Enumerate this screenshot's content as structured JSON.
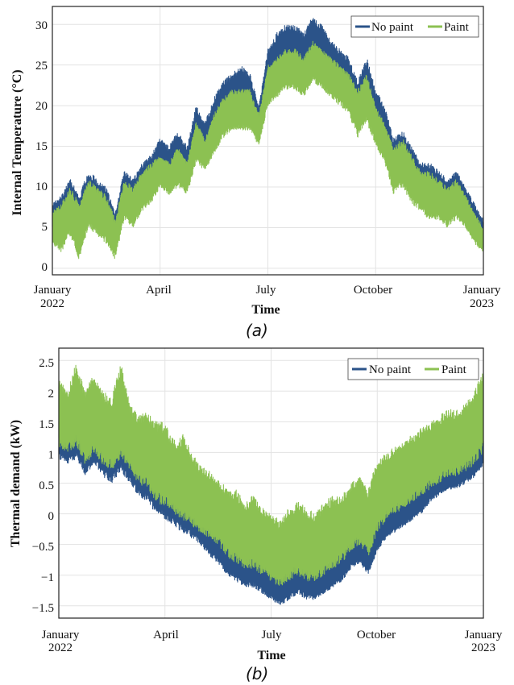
{
  "colors": {
    "no_paint": "#2b5389",
    "paint": "#8cc152",
    "grid": "#e3e3e3",
    "frame": "#222222"
  },
  "chart_data": [
    {
      "type": "line",
      "panel_label": "(a)",
      "title": "",
      "xlabel": "Time",
      "ylabel": "Internal Temperature (°C)",
      "ylim": [
        -0.8,
        32.2
      ],
      "yticks": [
        0,
        5,
        10,
        15,
        20,
        25,
        30
      ],
      "ytick_labels": [
        "0",
        "5",
        "10",
        "15",
        "20",
        "25",
        "30"
      ],
      "x_range_months": [
        0,
        12
      ],
      "xticks": [
        0,
        3,
        6,
        9,
        12
      ],
      "xtick_labels": [
        [
          "January",
          "2022"
        ],
        [
          "April",
          ""
        ],
        [
          "July",
          ""
        ],
        [
          "October",
          ""
        ],
        [
          "January",
          "2023"
        ]
      ],
      "grid": true,
      "legend": "top-right",
      "series": [
        {
          "name": "No paint",
          "color": "#2b5389",
          "x_month": [
            0,
            0.25,
            0.5,
            0.75,
            1.0,
            1.25,
            1.5,
            1.75,
            2.0,
            2.25,
            2.5,
            2.75,
            3.0,
            3.25,
            3.5,
            3.75,
            4.0,
            4.25,
            4.5,
            4.75,
            5.0,
            5.25,
            5.5,
            5.75,
            6.0,
            6.25,
            6.5,
            6.75,
            7.0,
            7.25,
            7.5,
            7.75,
            8.0,
            8.25,
            8.5,
            8.75,
            9.0,
            9.25,
            9.5,
            9.75,
            10.0,
            10.25,
            10.5,
            10.75,
            11.0,
            11.25,
            11.5,
            11.75,
            12.0
          ],
          "upper": [
            8,
            9,
            11,
            9,
            12,
            11,
            10,
            7,
            12,
            11,
            13,
            14,
            16,
            15,
            17,
            15,
            20,
            18,
            21,
            23,
            24,
            25,
            24,
            20,
            27,
            29,
            30,
            30,
            29,
            31,
            30,
            28,
            27,
            26,
            23,
            26,
            22,
            20,
            16,
            17,
            15,
            13,
            13,
            12,
            11,
            12,
            10,
            8,
            6
          ],
          "lower": [
            5,
            4,
            6,
            3,
            6,
            5,
            5,
            3,
            7,
            6,
            8,
            9,
            11,
            10,
            11,
            10,
            14,
            13,
            15,
            17,
            18,
            19,
            18,
            16,
            21,
            23,
            24,
            24,
            23,
            25,
            24,
            22,
            21,
            20,
            17,
            19,
            16,
            14,
            10,
            11,
            9,
            8,
            7,
            7,
            6,
            7,
            6,
            4,
            2
          ]
        },
        {
          "name": "Paint",
          "color": "#8cc152",
          "x_month": [
            0,
            0.25,
            0.5,
            0.75,
            1.0,
            1.25,
            1.5,
            1.75,
            2.0,
            2.25,
            2.5,
            2.75,
            3.0,
            3.25,
            3.5,
            3.75,
            4.0,
            4.25,
            4.5,
            4.75,
            5.0,
            5.25,
            5.5,
            5.75,
            6.0,
            6.25,
            6.5,
            6.75,
            7.0,
            7.25,
            7.5,
            7.75,
            8.0,
            8.25,
            8.5,
            8.75,
            9.0,
            9.25,
            9.5,
            9.75,
            10.0,
            10.25,
            10.5,
            10.75,
            11.0,
            11.25,
            11.5,
            11.75,
            12.0
          ],
          "upper": [
            7,
            8,
            10,
            8,
            11,
            10,
            9,
            6,
            11,
            10,
            12,
            13,
            14,
            13,
            15,
            13,
            18,
            16,
            19,
            21,
            22,
            22,
            22,
            19,
            25,
            26,
            27,
            27,
            26,
            28,
            27,
            26,
            25,
            24,
            22,
            24,
            20,
            18,
            15,
            16,
            14,
            12,
            12,
            11,
            10,
            11,
            9,
            7,
            5
          ],
          "lower": [
            3,
            2,
            4,
            1,
            5,
            4,
            3,
            1,
            6,
            5,
            7,
            8,
            10,
            9,
            10,
            9,
            13,
            12,
            14,
            16,
            17,
            17,
            17,
            15,
            20,
            21,
            22,
            22,
            21,
            23,
            22,
            21,
            20,
            19,
            16,
            18,
            15,
            13,
            9,
            10,
            8,
            7,
            6,
            6,
            5,
            6,
            5,
            3,
            2
          ]
        }
      ]
    },
    {
      "type": "line",
      "panel_label": "(b)",
      "title": "",
      "xlabel": "Time",
      "ylabel": "Thermal demand (kW)",
      "ylim": [
        -1.7,
        2.7
      ],
      "yticks": [
        -1.5,
        -1,
        -0.5,
        0,
        0.5,
        1,
        1.5,
        2,
        2.5
      ],
      "ytick_labels": [
        "−1.5",
        "−1",
        "−0.5",
        "0",
        "0.5",
        "1",
        "1.5",
        "2",
        "2.5"
      ],
      "x_range_months": [
        0,
        12
      ],
      "xticks": [
        0,
        3,
        6,
        9,
        12
      ],
      "xtick_labels": [
        [
          "January",
          "2022"
        ],
        [
          "April",
          ""
        ],
        [
          "July",
          ""
        ],
        [
          "October",
          ""
        ],
        [
          "January",
          "2023"
        ]
      ],
      "grid": true,
      "legend": "top-right",
      "series": [
        {
          "name": "No paint",
          "color": "#2b5389",
          "x_month": [
            0,
            0.25,
            0.5,
            0.75,
            1.0,
            1.25,
            1.5,
            1.75,
            2.0,
            2.25,
            2.5,
            2.75,
            3.0,
            3.25,
            3.5,
            3.75,
            4.0,
            4.25,
            4.5,
            4.75,
            5.0,
            5.25,
            5.5,
            5.75,
            6.0,
            6.25,
            6.5,
            6.75,
            7.0,
            7.25,
            7.5,
            7.75,
            8.0,
            8.25,
            8.5,
            8.75,
            9.0,
            9.25,
            9.5,
            9.75,
            10.0,
            10.25,
            10.5,
            10.75,
            11.0,
            11.25,
            11.5,
            11.75,
            12.0
          ],
          "upper": [
            1.6,
            1.5,
            1.7,
            1.4,
            1.6,
            1.5,
            1.4,
            1.6,
            1.3,
            1.1,
            1.0,
            0.9,
            0.8,
            0.6,
            0.6,
            0.4,
            0.2,
            0.0,
            -0.1,
            -0.3,
            -0.4,
            -0.6,
            -0.5,
            -0.7,
            -0.8,
            -0.9,
            -0.9,
            -0.7,
            -0.8,
            -0.9,
            -0.8,
            -0.7,
            -0.6,
            -0.4,
            -0.3,
            -0.5,
            -0.1,
            0.1,
            0.2,
            0.3,
            0.4,
            0.5,
            0.6,
            0.8,
            0.8,
            0.9,
            1.0,
            1.1,
            1.2
          ],
          "lower": [
            0.9,
            0.8,
            0.9,
            0.6,
            0.8,
            0.6,
            0.5,
            0.7,
            0.5,
            0.3,
            0.2,
            0.0,
            -0.1,
            -0.2,
            -0.3,
            -0.4,
            -0.5,
            -0.7,
            -0.8,
            -1.0,
            -1.1,
            -1.2,
            -1.2,
            -1.3,
            -1.4,
            -1.5,
            -1.4,
            -1.3,
            -1.4,
            -1.4,
            -1.3,
            -1.2,
            -1.1,
            -0.9,
            -0.8,
            -1.0,
            -0.6,
            -0.4,
            -0.3,
            -0.2,
            -0.1,
            0.0,
            0.2,
            0.3,
            0.4,
            0.4,
            0.5,
            0.6,
            0.8
          ]
        },
        {
          "name": "Paint",
          "color": "#8cc152",
          "x_month": [
            0,
            0.25,
            0.5,
            0.75,
            1.0,
            1.25,
            1.5,
            1.75,
            2.0,
            2.25,
            2.5,
            2.75,
            3.0,
            3.25,
            3.5,
            3.75,
            4.0,
            4.25,
            4.5,
            4.75,
            5.0,
            5.25,
            5.5,
            5.75,
            6.0,
            6.25,
            6.5,
            6.75,
            7.0,
            7.25,
            7.5,
            7.75,
            8.0,
            8.25,
            8.5,
            8.75,
            9.0,
            9.25,
            9.5,
            9.75,
            10.0,
            10.25,
            10.5,
            10.75,
            11.0,
            11.25,
            11.5,
            11.75,
            12.0
          ],
          "upper": [
            2.2,
            2.0,
            2.5,
            2.0,
            2.3,
            2.0,
            1.9,
            2.5,
            1.8,
            1.6,
            1.7,
            1.5,
            1.5,
            1.2,
            1.3,
            1.0,
            0.8,
            0.7,
            0.6,
            0.4,
            0.4,
            0.2,
            0.3,
            0.1,
            0.0,
            -0.1,
            0.1,
            0.2,
            0.1,
            0.0,
            0.2,
            0.3,
            0.3,
            0.5,
            0.6,
            0.4,
            0.9,
            1.0,
            1.1,
            1.2,
            1.3,
            1.4,
            1.5,
            1.6,
            1.7,
            1.7,
            1.8,
            2.0,
            2.4
          ],
          "lower": [
            1.1,
            1.0,
            1.1,
            0.8,
            1.0,
            0.8,
            0.7,
            0.9,
            0.7,
            0.5,
            0.4,
            0.2,
            0.1,
            0.0,
            -0.1,
            -0.2,
            -0.3,
            -0.4,
            -0.5,
            -0.7,
            -0.8,
            -0.9,
            -0.9,
            -1.0,
            -1.1,
            -1.2,
            -1.1,
            -1.0,
            -1.1,
            -1.1,
            -1.0,
            -0.9,
            -0.8,
            -0.6,
            -0.5,
            -0.7,
            -0.3,
            -0.1,
            0.0,
            0.1,
            0.2,
            0.3,
            0.4,
            0.5,
            0.6,
            0.6,
            0.7,
            0.8,
            1.0
          ]
        }
      ]
    }
  ]
}
